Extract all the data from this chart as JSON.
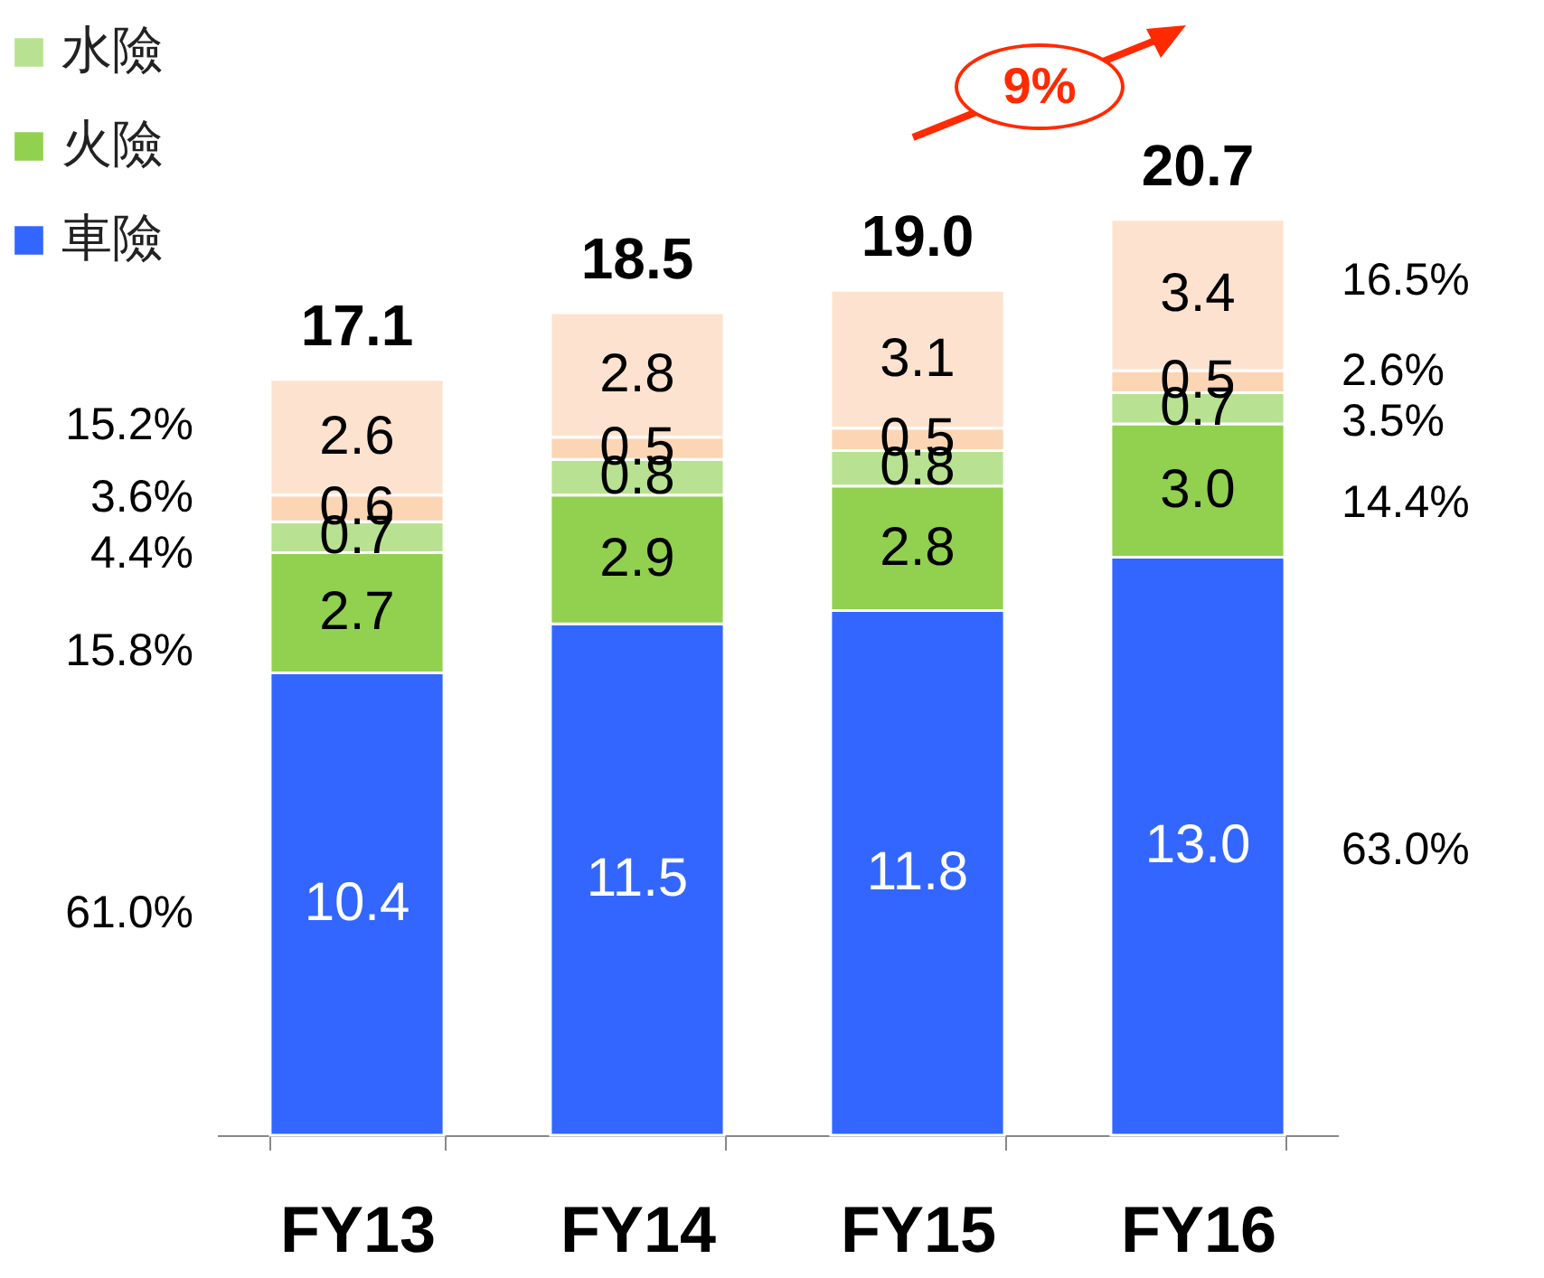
{
  "chart_data": {
    "type": "bar",
    "stacked": true,
    "legend": "top left",
    "categories": [
      "FY13",
      "FY14",
      "FY15",
      "FY16"
    ],
    "series": [
      {
        "name": "車險",
        "color": "#3366ff",
        "values": [
          10.4,
          11.5,
          11.8,
          13.0
        ],
        "value_labels": [
          "10.4",
          "11.5",
          "11.8",
          "13.0"
        ]
      },
      {
        "name": "火險",
        "color": "#92d050",
        "values": [
          2.7,
          2.9,
          2.8,
          3.0
        ],
        "value_labels": [
          "2.7",
          "2.9",
          "2.8",
          "3.0"
        ]
      },
      {
        "name": "水險",
        "color": "#b8e292",
        "values": [
          0.7,
          0.8,
          0.8,
          0.7
        ],
        "value_labels": [
          "0.7",
          "0.8",
          "0.8",
          "0.7"
        ]
      },
      {
        "color": "#fcd5b5",
        "values": [
          0.6,
          0.5,
          0.5,
          0.5
        ],
        "value_labels": [
          "0.6",
          "0.5",
          "0.5",
          "0.5"
        ]
      },
      {
        "color": "#fde3cf",
        "values": [
          2.6,
          2.8,
          3.1,
          3.4
        ],
        "value_labels": [
          "2.6",
          "2.8",
          "3.1",
          "3.4"
        ]
      }
    ],
    "totals": [
      "17.1",
      "18.5",
      "19.0",
      "20.7"
    ],
    "annotations": [
      "61.0%",
      "15.8%",
      "4.4%",
      "3.6%",
      "15.2%",
      "63.0%",
      "14.4%",
      "3.5%",
      "2.6%",
      "16.5%",
      "9%"
    ]
  }
}
